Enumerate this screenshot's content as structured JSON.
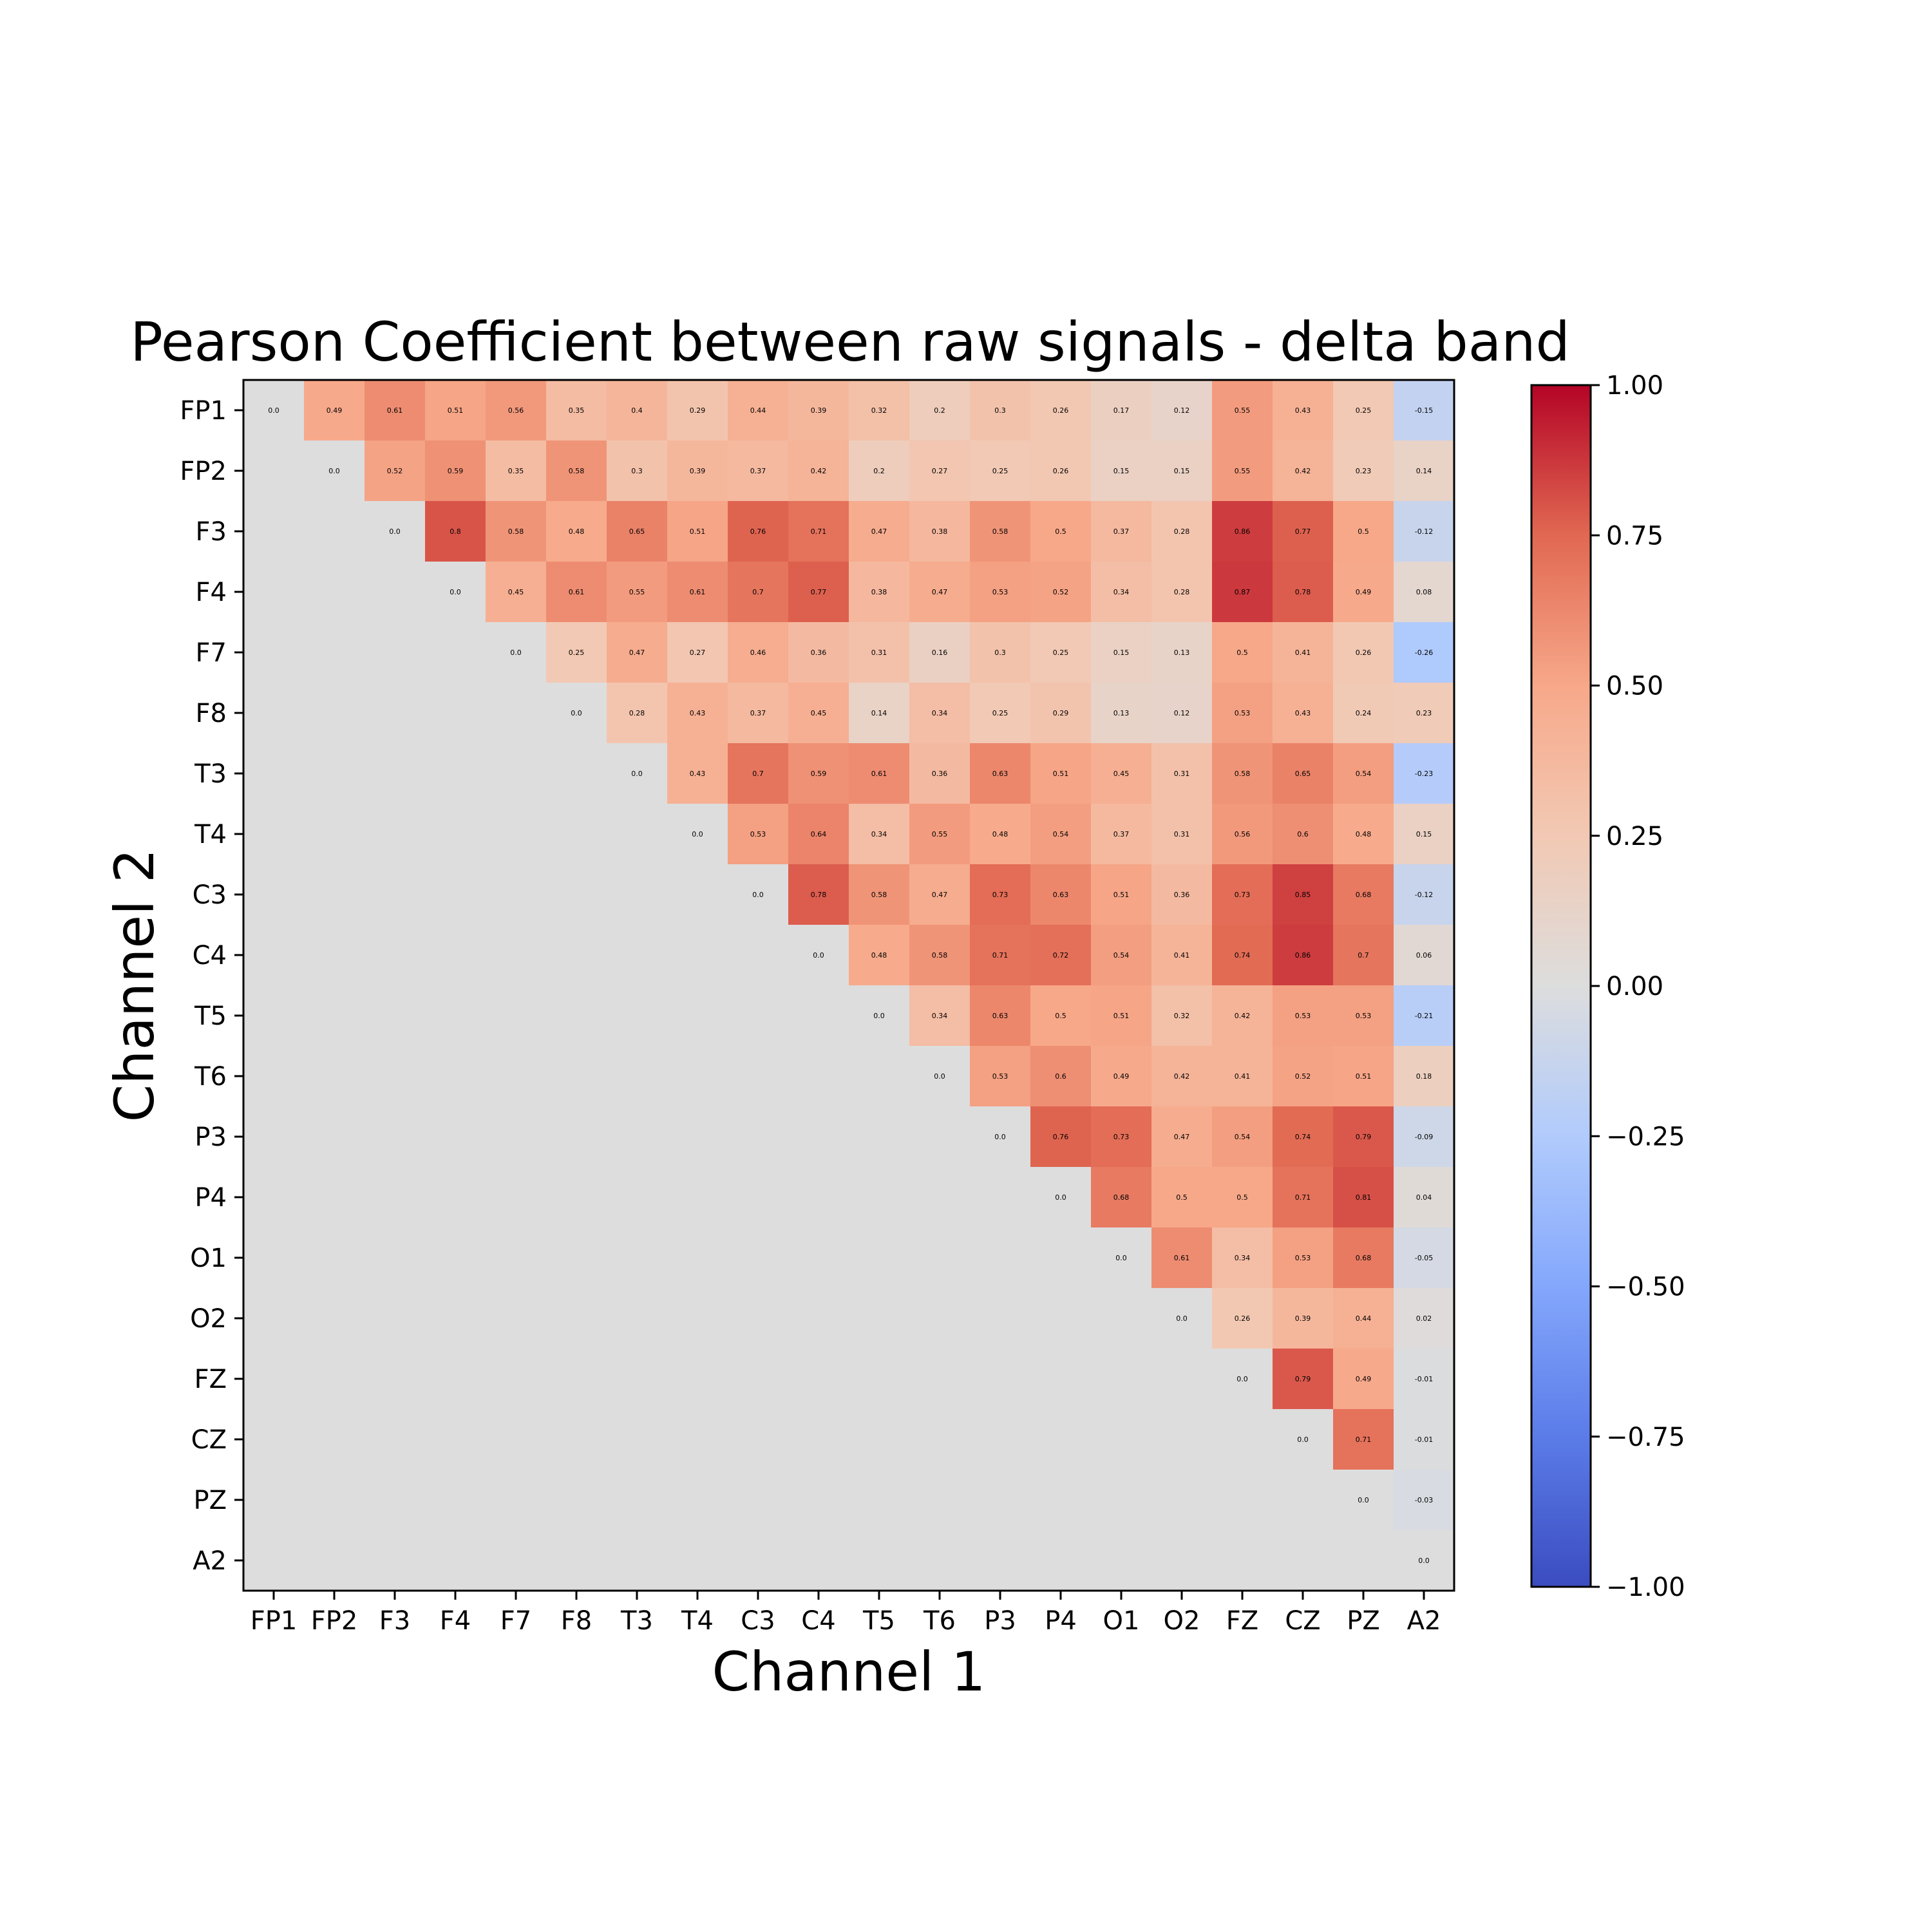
{
  "chart_data": {
    "type": "heatmap",
    "title": "Pearson Coefficient between raw signals - delta band",
    "xlabel": "Channel 1",
    "ylabel": "Channel 2",
    "x_categories": [
      "FP1",
      "FP2",
      "F3",
      "F4",
      "F7",
      "F8",
      "T3",
      "T4",
      "C3",
      "C4",
      "T5",
      "T6",
      "P3",
      "P4",
      "O1",
      "O2",
      "FZ",
      "CZ",
      "PZ",
      "A2"
    ],
    "y_categories": [
      "FP1",
      "FP2",
      "F3",
      "F4",
      "F7",
      "F8",
      "T3",
      "T4",
      "C3",
      "C4",
      "T5",
      "T6",
      "P3",
      "P4",
      "O1",
      "O2",
      "FZ",
      "CZ",
      "PZ",
      "A2"
    ],
    "colormap": "coolwarm",
    "vmin": -1.0,
    "vmax": 1.0,
    "colorbar_ticks": [
      "1.00",
      "0.75",
      "0.50",
      "0.25",
      "0.00",
      "−0.25",
      "−0.50",
      "−0.75",
      "−1.00"
    ],
    "lower_triangle_value": 0.0,
    "cell_labels": [
      [
        "0.0",
        "0.49",
        "0.61",
        "0.51",
        "0.56",
        "0.35",
        "0.4",
        "0.29",
        "0.44",
        "0.39",
        "0.32",
        "0.2",
        "0.3",
        "0.26",
        "0.17",
        "0.12",
        "0.55",
        "0.43",
        "0.25",
        "-0.15"
      ],
      [
        "",
        "0.0",
        "0.52",
        "0.59",
        "0.35",
        "0.58",
        "0.3",
        "0.39",
        "0.37",
        "0.42",
        "0.2",
        "0.27",
        "0.25",
        "0.26",
        "0.15",
        "0.15",
        "0.55",
        "0.42",
        "0.23",
        "0.14"
      ],
      [
        "",
        "",
        "0.0",
        "0.8",
        "0.58",
        "0.48",
        "0.65",
        "0.51",
        "0.76",
        "0.71",
        "0.47",
        "0.38",
        "0.58",
        "0.5",
        "0.37",
        "0.28",
        "0.86",
        "0.77",
        "0.5",
        "-0.12"
      ],
      [
        "",
        "",
        "",
        "0.0",
        "0.45",
        "0.61",
        "0.55",
        "0.61",
        "0.7",
        "0.77",
        "0.38",
        "0.47",
        "0.53",
        "0.52",
        "0.34",
        "0.28",
        "0.87",
        "0.78",
        "0.49",
        "0.08"
      ],
      [
        "",
        "",
        "",
        "",
        "0.0",
        "0.25",
        "0.47",
        "0.27",
        "0.46",
        "0.36",
        "0.31",
        "0.16",
        "0.3",
        "0.25",
        "0.15",
        "0.13",
        "0.5",
        "0.41",
        "0.26",
        "-0.26"
      ],
      [
        "",
        "",
        "",
        "",
        "",
        "0.0",
        "0.28",
        "0.43",
        "0.37",
        "0.45",
        "0.14",
        "0.34",
        "0.25",
        "0.29",
        "0.13",
        "0.12",
        "0.53",
        "0.43",
        "0.24",
        "0.23"
      ],
      [
        "",
        "",
        "",
        "",
        "",
        "",
        "0.0",
        "0.43",
        "0.7",
        "0.59",
        "0.61",
        "0.36",
        "0.63",
        "0.51",
        "0.45",
        "0.31",
        "0.58",
        "0.65",
        "0.54",
        "-0.23"
      ],
      [
        "",
        "",
        "",
        "",
        "",
        "",
        "",
        "0.0",
        "0.53",
        "0.64",
        "0.34",
        "0.55",
        "0.48",
        "0.54",
        "0.37",
        "0.31",
        "0.56",
        "0.6",
        "0.48",
        "0.15"
      ],
      [
        "",
        "",
        "",
        "",
        "",
        "",
        "",
        "",
        "0.0",
        "0.78",
        "0.58",
        "0.47",
        "0.73",
        "0.63",
        "0.51",
        "0.36",
        "0.73",
        "0.85",
        "0.68",
        "-0.12"
      ],
      [
        "",
        "",
        "",
        "",
        "",
        "",
        "",
        "",
        "",
        "0.0",
        "0.48",
        "0.58",
        "0.71",
        "0.72",
        "0.54",
        "0.41",
        "0.74",
        "0.86",
        "0.7",
        "0.06"
      ],
      [
        "",
        "",
        "",
        "",
        "",
        "",
        "",
        "",
        "",
        "",
        "0.0",
        "0.34",
        "0.63",
        "0.5",
        "0.51",
        "0.32",
        "0.42",
        "0.53",
        "0.53",
        "-0.21"
      ],
      [
        "",
        "",
        "",
        "",
        "",
        "",
        "",
        "",
        "",
        "",
        "",
        "0.0",
        "0.53",
        "0.6",
        "0.49",
        "0.42",
        "0.41",
        "0.52",
        "0.51",
        "0.18"
      ],
      [
        "",
        "",
        "",
        "",
        "",
        "",
        "",
        "",
        "",
        "",
        "",
        "",
        "0.0",
        "0.76",
        "0.73",
        "0.47",
        "0.54",
        "0.74",
        "0.79",
        "-0.09"
      ],
      [
        "",
        "",
        "",
        "",
        "",
        "",
        "",
        "",
        "",
        "",
        "",
        "",
        "",
        "0.0",
        "0.68",
        "0.5",
        "0.5",
        "0.71",
        "0.81",
        "0.04"
      ],
      [
        "",
        "",
        "",
        "",
        "",
        "",
        "",
        "",
        "",
        "",
        "",
        "",
        "",
        "",
        "0.0",
        "0.61",
        "0.34",
        "0.53",
        "0.68",
        "-0.05"
      ],
      [
        "",
        "",
        "",
        "",
        "",
        "",
        "",
        "",
        "",
        "",
        "",
        "",
        "",
        "",
        "",
        "0.0",
        "0.26",
        "0.39",
        "0.44",
        "0.02"
      ],
      [
        "",
        "",
        "",
        "",
        "",
        "",
        "",
        "",
        "",
        "",
        "",
        "",
        "",
        "",
        "",
        "",
        "0.0",
        "0.79",
        "0.49",
        "-0.01"
      ],
      [
        "",
        "",
        "",
        "",
        "",
        "",
        "",
        "",
        "",
        "",
        "",
        "",
        "",
        "",
        "",
        "",
        "",
        "0.0",
        "0.71",
        "-0.01"
      ],
      [
        "",
        "",
        "",
        "",
        "",
        "",
        "",
        "",
        "",
        "",
        "",
        "",
        "",
        "",
        "",
        "",
        "",
        "",
        "0.0",
        "-0.03"
      ],
      [
        "",
        "",
        "",
        "",
        "",
        "",
        "",
        "",
        "",
        "",
        "",
        "",
        "",
        "",
        "",
        "",
        "",
        "",
        "",
        "0.0"
      ]
    ]
  }
}
